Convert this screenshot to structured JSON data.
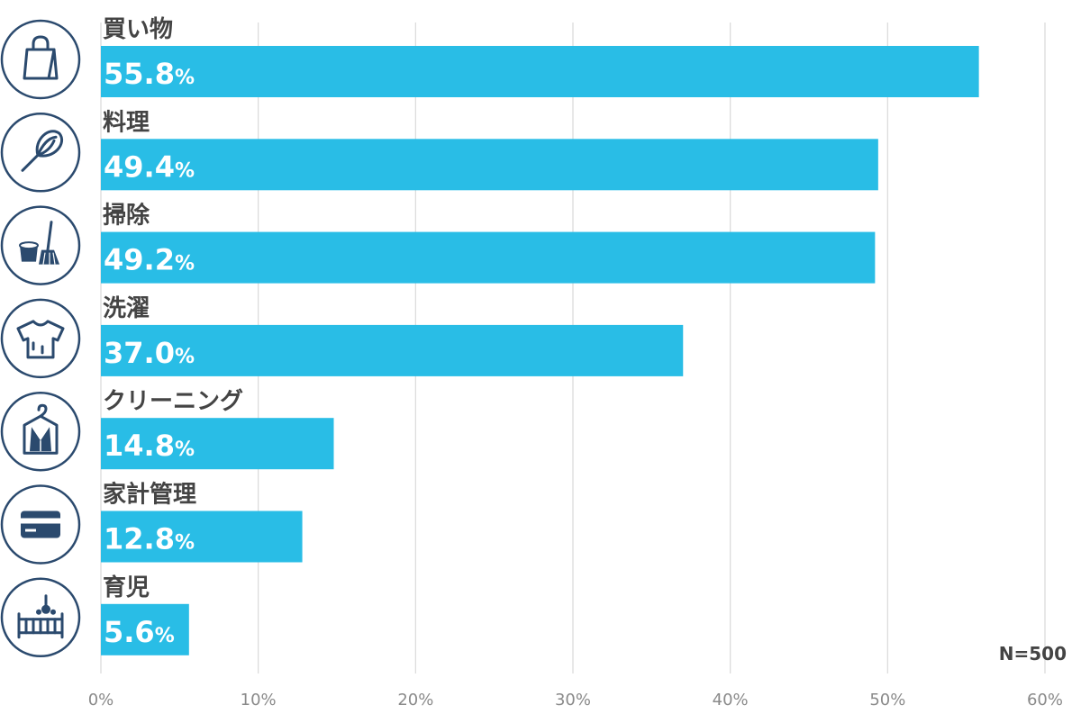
{
  "chart_data": {
    "type": "bar",
    "orientation": "horizontal",
    "categories": [
      "買い物",
      "料理",
      "掃除",
      "洗濯",
      "クリーニング",
      "家計管理",
      "育児"
    ],
    "values": [
      55.8,
      49.4,
      49.2,
      37.0,
      14.8,
      12.8,
      5.6
    ],
    "value_labels": [
      "55.8",
      "49.4",
      "49.2",
      "37.0",
      "14.8",
      "12.8",
      "5.6"
    ],
    "value_unit": "%",
    "xlim": [
      0,
      60
    ],
    "ticks": [
      0,
      10,
      20,
      30,
      40,
      50,
      60
    ],
    "tick_labels": [
      "0%",
      "10%",
      "20%",
      "30%",
      "40%",
      "50%",
      "60%"
    ],
    "grid": true,
    "bar_color": "#29BDE6",
    "icons": [
      "shopping-bag-icon",
      "whisk-icon",
      "bucket-broom-icon",
      "t-shirt-icon",
      "garment-bag-icon",
      "credit-card-icon",
      "crib-icon"
    ],
    "note": "N=500"
  }
}
